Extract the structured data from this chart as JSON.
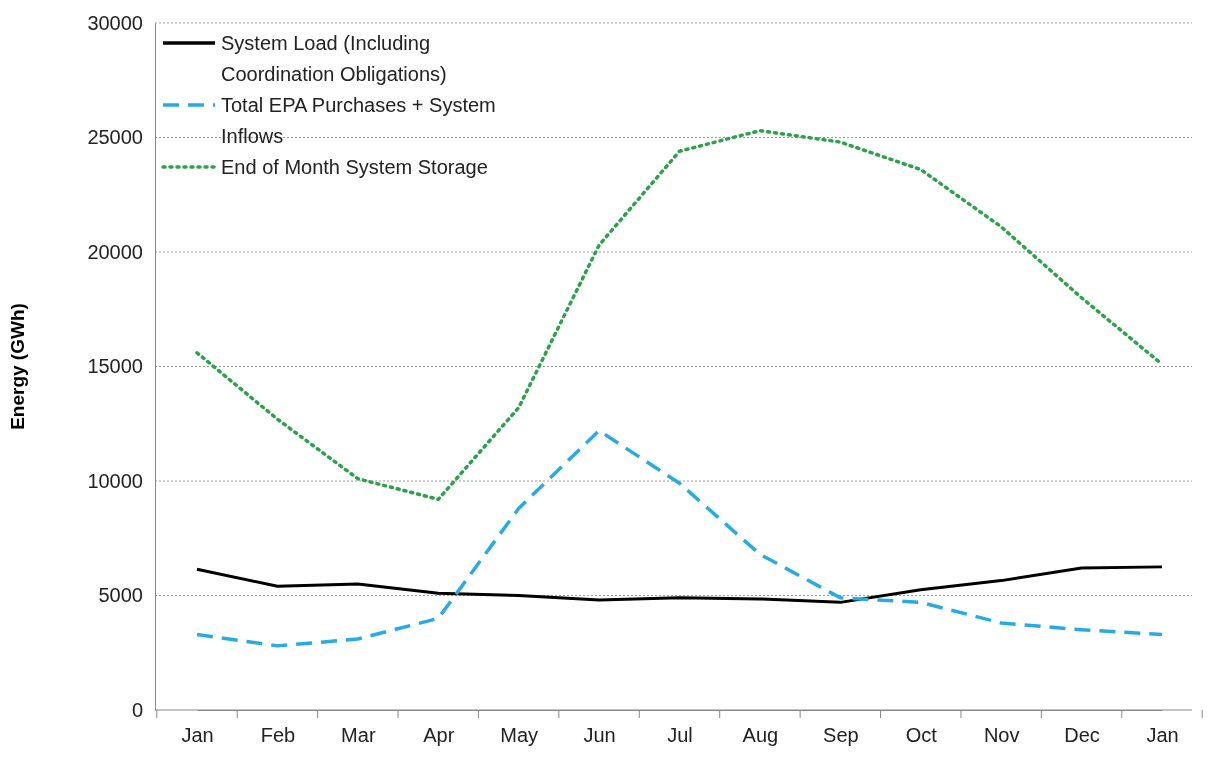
{
  "chart_data": {
    "type": "line",
    "ylabel": "Energy (GWh)",
    "categories": [
      "Jan",
      "Feb",
      "Mar",
      "Apr",
      "May",
      "Jun",
      "Jul",
      "Aug",
      "Sep",
      "Oct",
      "Nov",
      "Dec",
      "Jan"
    ],
    "series": [
      {
        "name": "System Load (Including Coordination Obligations)",
        "color": "#000000",
        "line_style": "solid",
        "values": [
          6150,
          5400,
          5500,
          5100,
          5000,
          4800,
          4900,
          4850,
          4700,
          5250,
          5650,
          6200,
          6250
        ]
      },
      {
        "name": "Total EPA Purchases + System Inflows",
        "color": "#29abe2",
        "line_style": "dashed",
        "values": [
          3300,
          2800,
          3100,
          4000,
          8800,
          12200,
          9900,
          6800,
          4900,
          4700,
          3800,
          3500,
          3300
        ]
      },
      {
        "name": "End of Month System Storage",
        "color": "#2ca24a",
        "line_style": "dotted",
        "values": [
          15600,
          12700,
          10100,
          9200,
          13200,
          20300,
          24400,
          25300,
          24800,
          23600,
          21100,
          18000,
          15100
        ]
      }
    ],
    "ylim": [
      0,
      30000
    ],
    "yticks": [
      0,
      5000,
      10000,
      15000,
      20000,
      25000,
      30000
    ],
    "grid": "y",
    "legend": "top left",
    "marker": "none"
  }
}
